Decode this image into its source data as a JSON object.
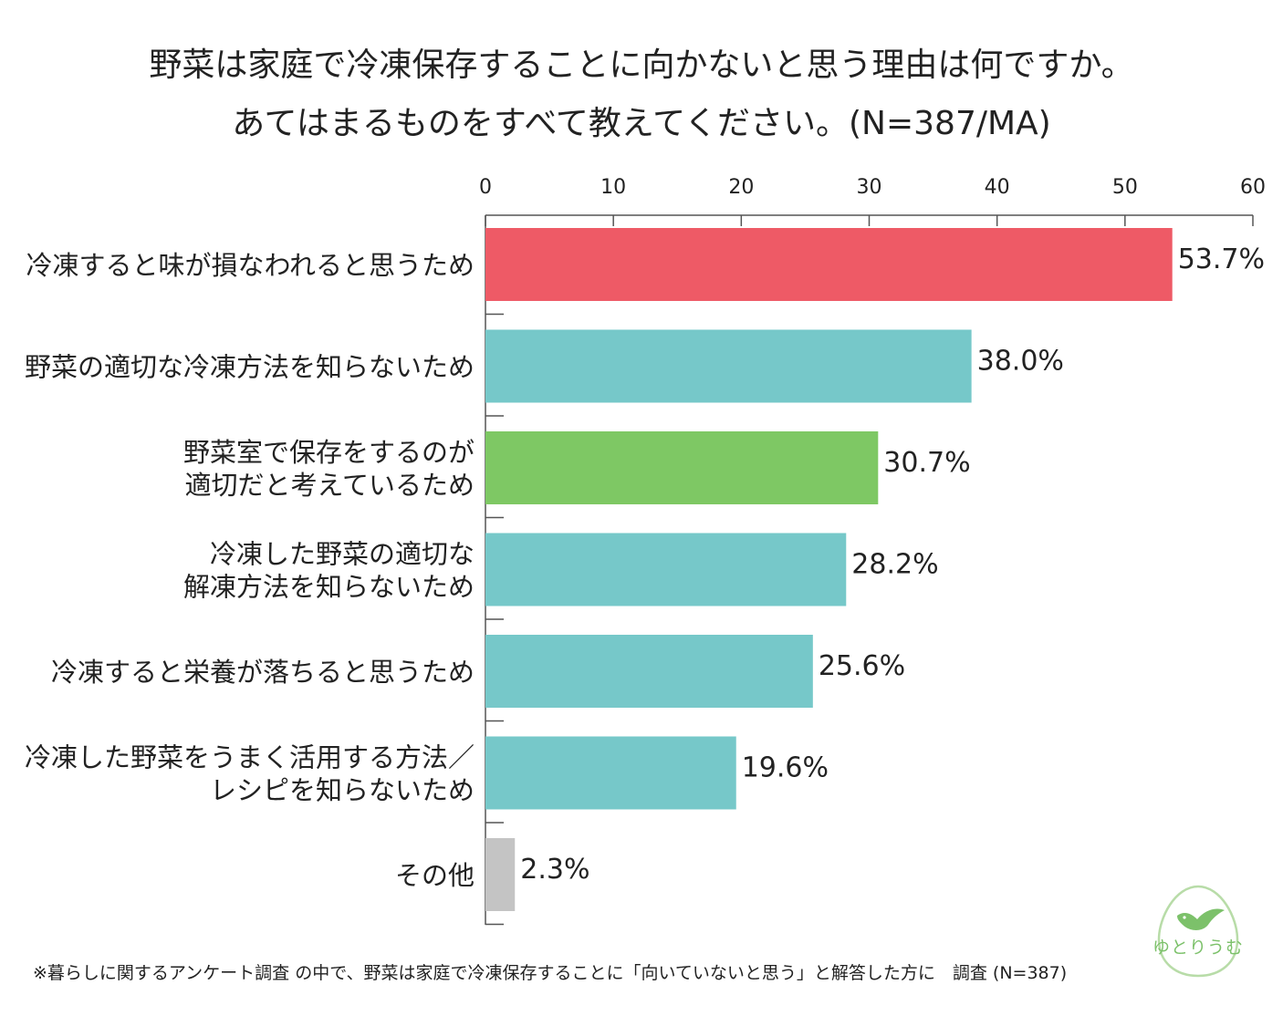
{
  "chart_data": {
    "type": "bar",
    "orientation": "horizontal",
    "title_line1": "野菜は家庭で冷凍保存することに向かないと思う理由は何ですか。",
    "title_line2": "あてはまるものをすべて教えてください。(N=387/MA)",
    "xlim": [
      0,
      60
    ],
    "xticks": [
      "0",
      "10",
      "20",
      "30",
      "40",
      "50",
      "60"
    ],
    "categories": [
      [
        "冷凍すると味が損なわれると思うため"
      ],
      [
        "野菜の適切な冷凍方法を知らないため"
      ],
      [
        "野菜室で保存をするのが",
        "適切だと考えているため"
      ],
      [
        "冷凍した野菜の適切な",
        "解凍方法を知らないため"
      ],
      [
        "冷凍すると栄養が落ちると思うため"
      ],
      [
        "冷凍した野菜をうまく活用する方法／",
        "レシピを知らないため"
      ],
      [
        "その他"
      ]
    ],
    "values": [
      53.7,
      38.0,
      30.7,
      28.2,
      25.6,
      19.6,
      2.3
    ],
    "value_labels": [
      "53.7%",
      "38.0%",
      "30.7%",
      "28.2%",
      "25.6%",
      "19.6%",
      "2.3%"
    ],
    "colors": [
      "#ee5a66",
      "#76c8c9",
      "#7ec864",
      "#76c8c9",
      "#76c8c9",
      "#76c8c9",
      "#c4c4c4"
    ]
  },
  "footnote": "※暮らしに関するアンケート調査 の中で、野菜は家庭で冷凍保存することに「向いていないと思う」と解答した方に　調査 (N=387)",
  "logo": {
    "text": "ゆとりうむ",
    "color": "#7cc16a"
  }
}
